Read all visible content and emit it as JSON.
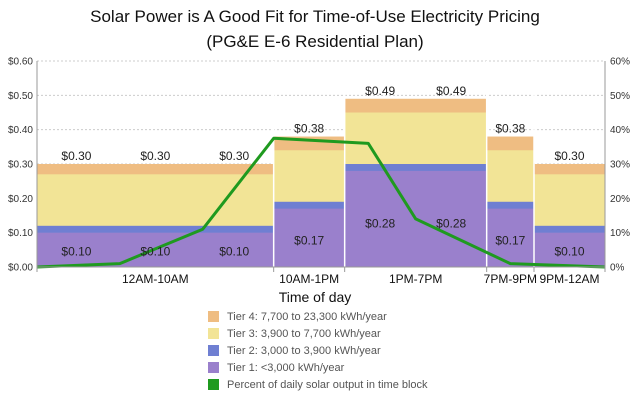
{
  "chart_data": {
    "type": "bar",
    "title": "Solar Power is A Good Fit for Time-of-Use Electricity Pricing",
    "subtitle": "(PG&E E-6 Residential Plan)",
    "xlabel": "Time of day",
    "ylim": [
      0,
      0.6
    ],
    "y2lim": [
      0,
      60
    ],
    "y_ticks": [
      "$0.00",
      "$0.10",
      "$0.20",
      "$0.30",
      "$0.40",
      "$0.50",
      "$0.60"
    ],
    "y2_ticks": [
      "0%",
      "10%",
      "20%",
      "30%",
      "40%",
      "50%",
      "60%"
    ],
    "grid": true,
    "legend_position": "bottom",
    "categories": [
      "12AM-10AM",
      "10AM-1PM",
      "1PM-7PM",
      "7PM-9PM",
      "9PM-12AM"
    ],
    "segments": [
      {
        "label": "12AM-10AM",
        "hours": 10
      },
      {
        "label": "10AM-1PM",
        "hours": 3
      },
      {
        "label": "1PM-7PM",
        "hours": 6
      },
      {
        "label": "7PM-9PM",
        "hours": 2
      },
      {
        "label": "9PM-12AM",
        "hours": 3
      }
    ],
    "bar_labels": [
      {
        "segment": 0,
        "position": 0.1667,
        "tier1": "$0.10",
        "tier4": "$0.30"
      },
      {
        "segment": 0,
        "position": 0.5,
        "tier1": "$0.10",
        "tier4": "$0.30"
      },
      {
        "segment": 0,
        "position": 0.8333,
        "tier1": "$0.10",
        "tier4": "$0.30"
      },
      {
        "segment": 1,
        "position": 0.5,
        "tier1": "$0.17",
        "tier4": "$0.38"
      },
      {
        "segment": 2,
        "position": 0.25,
        "tier1": "$0.28",
        "tier4": "$0.49"
      },
      {
        "segment": 2,
        "position": 0.75,
        "tier1": "$0.28",
        "tier4": "$0.49"
      },
      {
        "segment": 3,
        "position": 0.5,
        "tier1": "$0.17",
        "tier4": "$0.38"
      },
      {
        "segment": 4,
        "position": 0.5,
        "tier1": "$0.10",
        "tier4": "$0.30"
      }
    ],
    "series": [
      {
        "name": "Tier 4: 7,700 to 23,300 kWh/year",
        "color": "#efbd82",
        "values": [
          0.3,
          0.38,
          0.49,
          0.38,
          0.3
        ]
      },
      {
        "name": "Tier 3: 3,900 to 7,700 kWh/year",
        "color": "#f2e496",
        "values": [
          0.27,
          0.34,
          0.45,
          0.34,
          0.27
        ]
      },
      {
        "name": "Tier 2: 3,000 to 3,900 kWh/year",
        "color": "#6f7fd2",
        "values": [
          0.12,
          0.19,
          0.3,
          0.19,
          0.12
        ]
      },
      {
        "name": "Tier 1: <3,000 kWh/year",
        "color": "#9a80cc",
        "values": [
          0.1,
          0.17,
          0.28,
          0.17,
          0.1
        ]
      }
    ],
    "line_series": {
      "name": "Percent of daily solar output in time block",
      "color": "#1f9a1f",
      "points": [
        {
          "x_hours": 0,
          "y_percent": 0
        },
        {
          "x_hours": 3.5,
          "y_percent": 1
        },
        {
          "x_hours": 7,
          "y_percent": 11
        },
        {
          "x_hours": 10,
          "y_percent": 37.5
        },
        {
          "x_hours": 14,
          "y_percent": 36
        },
        {
          "x_hours": 16,
          "y_percent": 14
        },
        {
          "x_hours": 20,
          "y_percent": 1
        },
        {
          "x_hours": 24,
          "y_percent": 0
        }
      ]
    }
  },
  "legend": [
    {
      "label": "Tier 4: 7,700 to 23,300 kWh/year",
      "color": "#efbd82"
    },
    {
      "label": "Tier 3: 3,900 to 7,700 kWh/year",
      "color": "#f2e496"
    },
    {
      "label": "Tier 2: 3,000 to 3,900 kWh/year",
      "color": "#6f7fd2"
    },
    {
      "label": "Tier 1: <3,000 kWh/year",
      "color": "#9a80cc"
    },
    {
      "label": "Percent of daily solar output in time block",
      "color": "#1f9a1f"
    }
  ]
}
